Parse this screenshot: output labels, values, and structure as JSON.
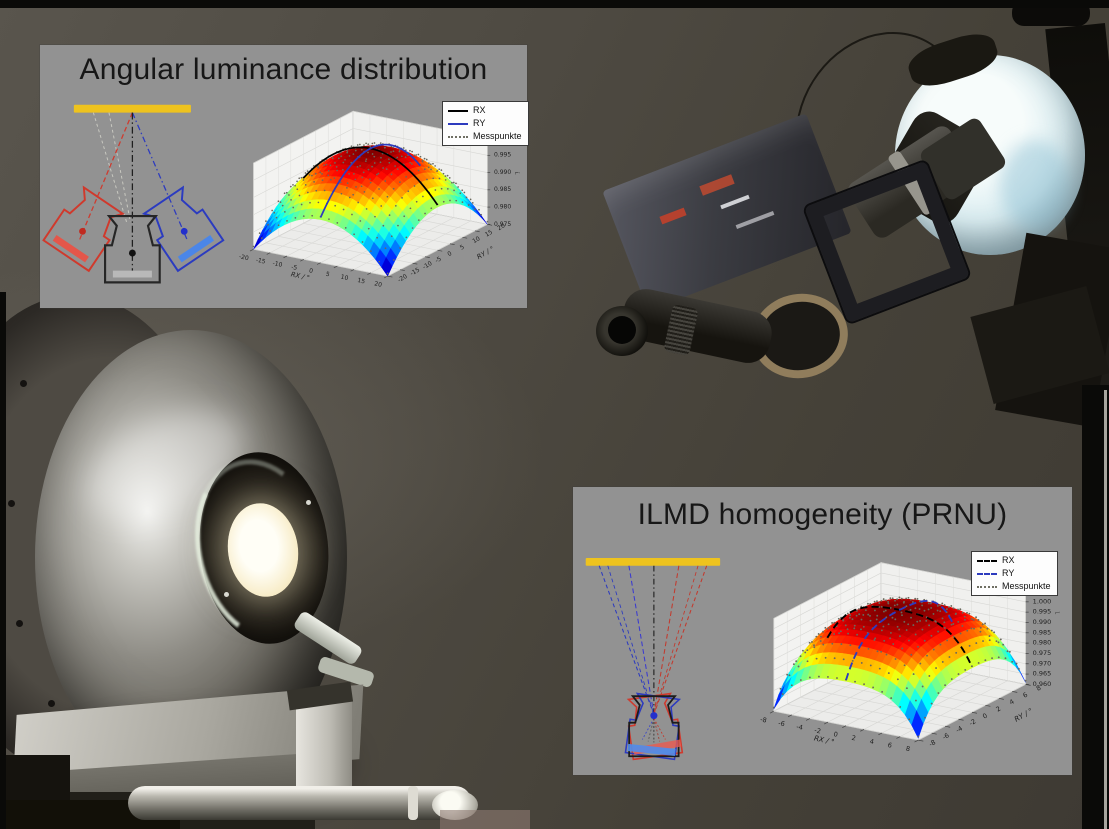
{
  "figure": {
    "description": "Robotic goniophotometer laboratory photo with two measurement-result overlays",
    "colors": {
      "panel_bg": "#929292",
      "photo_bg": "#4e4a42",
      "highlight_bar_yellow": "#eec31e",
      "schematic_red": "#cf3a2e",
      "schematic_blue": "#2d3bbe",
      "legend_bg": "#fdfdfd"
    }
  },
  "panels": [
    {
      "title": "Angular luminance distribution"
    },
    {
      "title": "ILMD homogeneity (PRNU)"
    }
  ],
  "chart_data": [
    {
      "type": "surface3d",
      "title": "Angular luminance distribution",
      "xlabel": "RX / °",
      "ylabel": "RY / °",
      "x_range": [
        -20,
        20
      ],
      "y_range": [
        -20,
        20
      ],
      "x_ticks": [
        -20,
        -15,
        -10,
        -5,
        0,
        5,
        10,
        15,
        20
      ],
      "y_ticks": [
        -20,
        -15,
        -10,
        -5,
        0,
        5,
        10,
        15,
        20
      ],
      "z_ticks": [
        "0.975",
        "0.980",
        "0.985",
        "0.990",
        "0.995",
        "1.000"
      ],
      "z_side_label": "L̃",
      "surface": {
        "shape": "dome",
        "colormap": "jet",
        "peak_z": 1.0,
        "edge_z": 0.975
      },
      "series": [
        {
          "name": "RX",
          "color": "#000000",
          "style": "solid"
        },
        {
          "name": "RY",
          "color": "#2d3bbe",
          "style": "solid"
        },
        {
          "name": "Messpunkte",
          "color": "#6f6f63",
          "style": "dots"
        }
      ],
      "legend_position": "upper right",
      "grid": true
    },
    {
      "type": "surface3d",
      "title": "ILMD homogeneity (PRNU)",
      "xlabel": "RX / °",
      "ylabel": "RY / °",
      "x_range": [
        -8,
        8
      ],
      "y_range": [
        -8,
        8
      ],
      "x_ticks": [
        -8,
        -6,
        -4,
        -2,
        0,
        2,
        4,
        6,
        8
      ],
      "y_ticks": [
        -8,
        -6,
        -4,
        -2,
        0,
        2,
        4,
        6,
        8
      ],
      "z_ticks": [
        "0.960",
        "0.965",
        "0.970",
        "0.975",
        "0.980",
        "0.985",
        "0.990",
        "0.995",
        "1.000",
        "1.005"
      ],
      "z_side_label": "L̃",
      "surface": {
        "shape": "plateau",
        "colormap": "jet",
        "peak_z": 1.002,
        "edge_z": 0.961
      },
      "series": [
        {
          "name": "RX",
          "color": "#000000",
          "style": "dashed"
        },
        {
          "name": "RY",
          "color": "#2d3bbe",
          "style": "dashed"
        },
        {
          "name": "Messpunkte",
          "color": "#6f6f63",
          "style": "dots"
        }
      ],
      "legend_position": "upper right",
      "grid": true
    }
  ]
}
